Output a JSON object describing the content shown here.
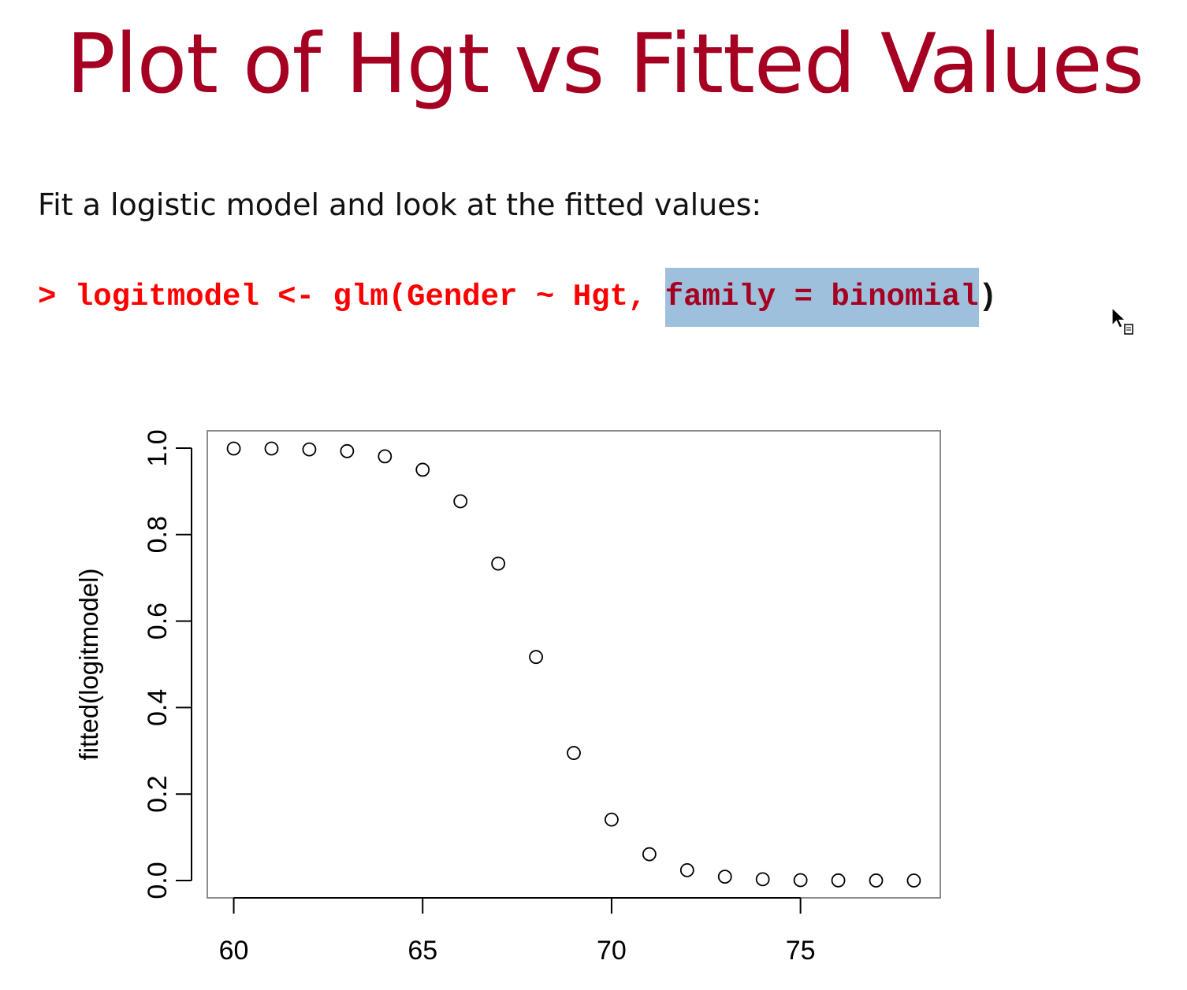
{
  "slide": {
    "title": "Plot of Hgt vs Fitted Values",
    "intro": "Fit a logistic model and look at the fitted values:",
    "code": {
      "prompt": ">",
      "before_selection": "logitmodel <- glm(Gender ~ Hgt,",
      "selection": "family = binomial",
      "after_selection": ")"
    }
  },
  "colors": {
    "title": "#a50021",
    "code": "#ff0000",
    "selection_background": "#9ec0dc",
    "selection_text": "#a50021"
  },
  "icons": {
    "cursor": "arrow-copy-cursor-icon"
  },
  "chart_data": {
    "type": "scatter",
    "title": "",
    "xlabel": "",
    "ylabel": "fitted(logitmodel)",
    "xlim": [
      59.3,
      78.7
    ],
    "ylim": [
      -0.04,
      1.04
    ],
    "xticks": [
      {
        "value": 60,
        "label": "60"
      },
      {
        "value": 65,
        "label": "65"
      },
      {
        "value": 70,
        "label": "70"
      },
      {
        "value": 75,
        "label": "75"
      }
    ],
    "yticks": [
      {
        "value": 0.0,
        "label": "0.0"
      },
      {
        "value": 0.2,
        "label": "0.2"
      },
      {
        "value": 0.4,
        "label": "0.4"
      },
      {
        "value": 0.6,
        "label": "0.6"
      },
      {
        "value": 0.8,
        "label": "0.8"
      },
      {
        "value": 1.0,
        "label": "1.0"
      }
    ],
    "marker": "open-circle",
    "grid": false,
    "x": [
      60,
      61,
      62,
      63,
      64,
      65,
      66,
      67,
      68,
      69,
      70,
      71,
      72,
      73,
      74,
      75,
      76,
      77,
      78
    ],
    "y": [
      0.999,
      0.999,
      0.997,
      0.993,
      0.981,
      0.95,
      0.877,
      0.733,
      0.517,
      0.295,
      0.141,
      0.061,
      0.024,
      0.009,
      0.003,
      0.001,
      0.0004,
      0.0002,
      0.0001
    ]
  }
}
